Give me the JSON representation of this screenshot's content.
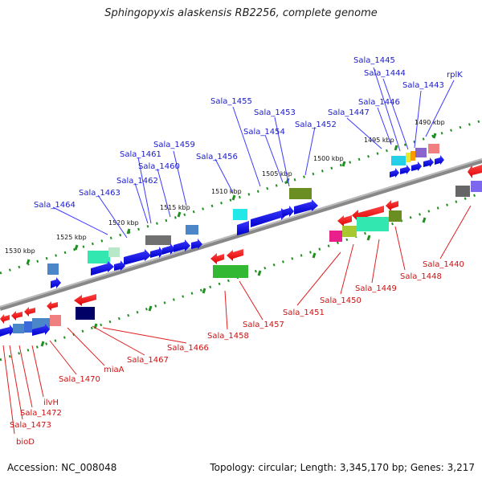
{
  "title": "Sphingopyxis alaskensis RB2256, complete genome",
  "footer": {
    "accession": "Accession: NC_008048",
    "topology": "Topology: circular; Length: 3,345,170 bp; Genes: 3,217"
  },
  "kbp_labels": [
    "1490 kbp",
    "1495 kbp",
    "1500 kbp",
    "1505 kbp",
    "1510 kbp",
    "1515 kbp",
    "1520 kbp",
    "1525 kbp",
    "1530 kbp"
  ],
  "top_labels": [
    "Sala_1445",
    "Sala_1444",
    "rplK",
    "Sala_1443",
    "Sala_1446",
    "Sala_1447",
    "Sala_1455",
    "Sala_1453",
    "Sala_1452",
    "Sala_1454",
    "Sala_1459",
    "Sala_1461",
    "Sala_1456",
    "Sala_1460",
    "Sala_1462",
    "Sala_1463",
    "Sala_1464"
  ],
  "bottom_labels": [
    "Sala_1440",
    "Sala_1448",
    "Sala_1449",
    "Sala_1450",
    "Sala_1451",
    "Sala_1457",
    "Sala_1458",
    "Sala_1466",
    "Sala_1467",
    "miaA",
    "Sala_1470",
    "ilvH",
    "Sala_1472",
    "Sala_1473",
    "bioD"
  ]
}
